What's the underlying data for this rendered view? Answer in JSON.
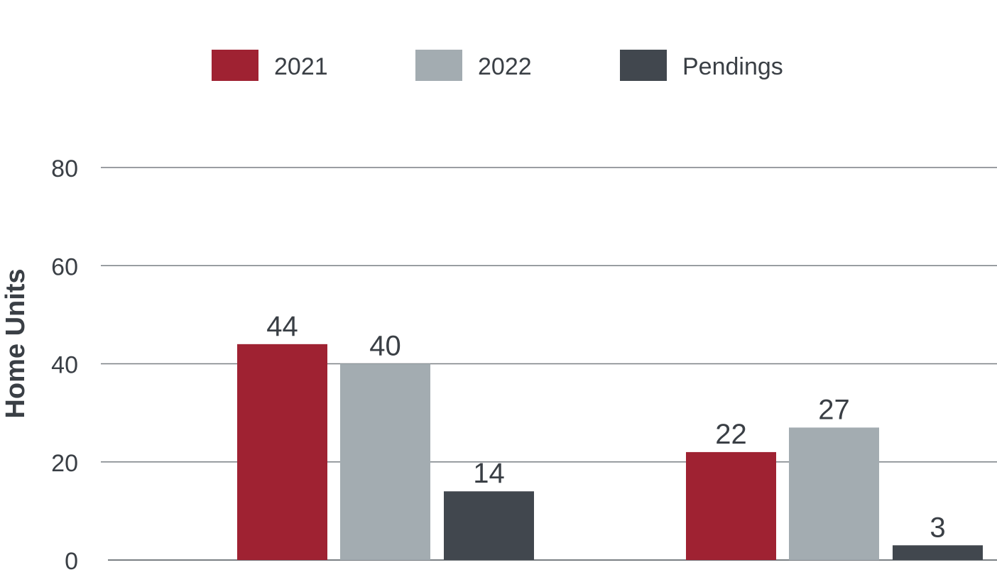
{
  "chart_data": {
    "type": "bar",
    "title": "",
    "xlabel": "",
    "ylabel": "Home Units",
    "ylim": [
      0,
      80
    ],
    "yticks": [
      0,
      20,
      40,
      60,
      80
    ],
    "grid": true,
    "legend_position": "top",
    "categories": [
      "",
      ""
    ],
    "series": [
      {
        "name": "2021",
        "color": "#9f2232",
        "values": [
          44,
          22
        ]
      },
      {
        "name": "2022",
        "color": "#a3acb1",
        "values": [
          40,
          27
        ]
      },
      {
        "name": "Pendings",
        "color": "#41474e",
        "values": [
          14,
          3
        ]
      }
    ],
    "data_labels": [
      [
        "44",
        "22"
      ],
      [
        "40",
        "27"
      ],
      [
        "14",
        "3"
      ]
    ]
  },
  "colors": {
    "label_text": "#3a3f45",
    "gridline": "#7a7f84",
    "axis_title": "#3a3f45"
  }
}
